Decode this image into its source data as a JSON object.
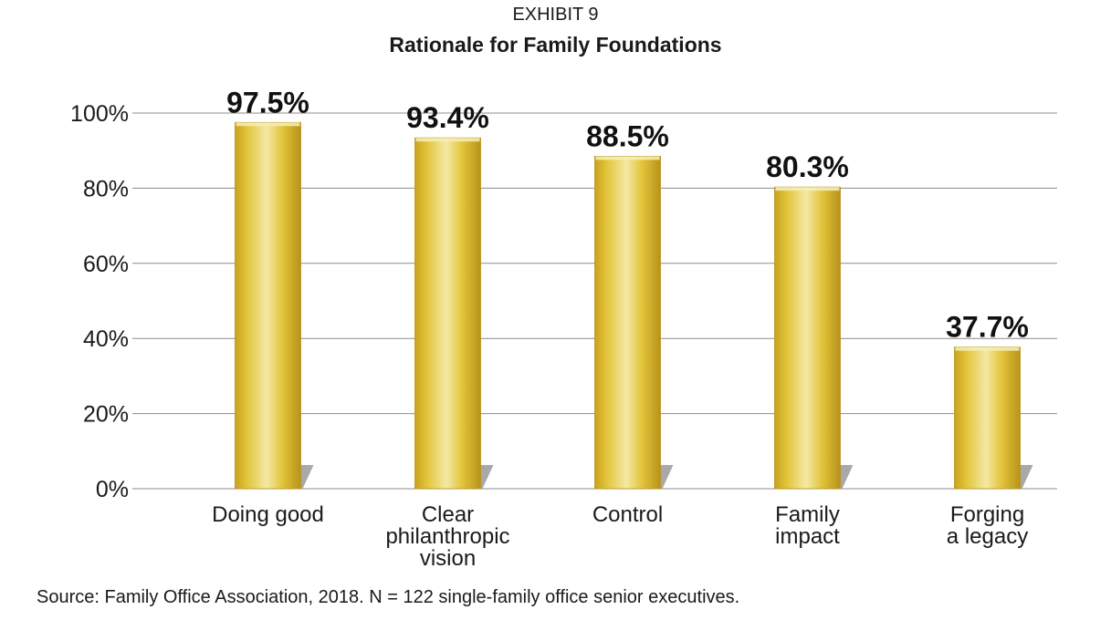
{
  "exhibit_label": "EXHIBIT 9",
  "source_note": "Source: Family Office Association, 2018.  N = 122 single-family office senior executives.",
  "colors": {
    "bar_light": "#f2e59a",
    "bar_mid": "#e2c43a",
    "bar_dark": "#c9a21e",
    "gridline": "#8c8c8c",
    "shadow": "#a9a9a9",
    "text": "#1a1a1a"
  },
  "chart_data": {
    "type": "bar",
    "title": "Rationale for Family Foundations",
    "xlabel": "",
    "ylabel": "",
    "ylim": [
      0,
      100
    ],
    "yticks": [
      0,
      20,
      40,
      60,
      80,
      100
    ],
    "ytick_labels": [
      "0%",
      "20%",
      "40%",
      "60%",
      "80%",
      "100%"
    ],
    "categories": [
      [
        "Doing good"
      ],
      [
        "Clear",
        "philanthropic",
        "vision"
      ],
      [
        "Control"
      ],
      [
        "Family",
        "impact"
      ],
      [
        "Forging",
        "a legacy"
      ]
    ],
    "values": [
      97.5,
      93.4,
      88.5,
      80.3,
      37.7
    ],
    "data_labels": [
      "97.5%",
      "93.4%",
      "88.5%",
      "80.3%",
      "37.7%"
    ],
    "grid": true,
    "legend": "none"
  }
}
